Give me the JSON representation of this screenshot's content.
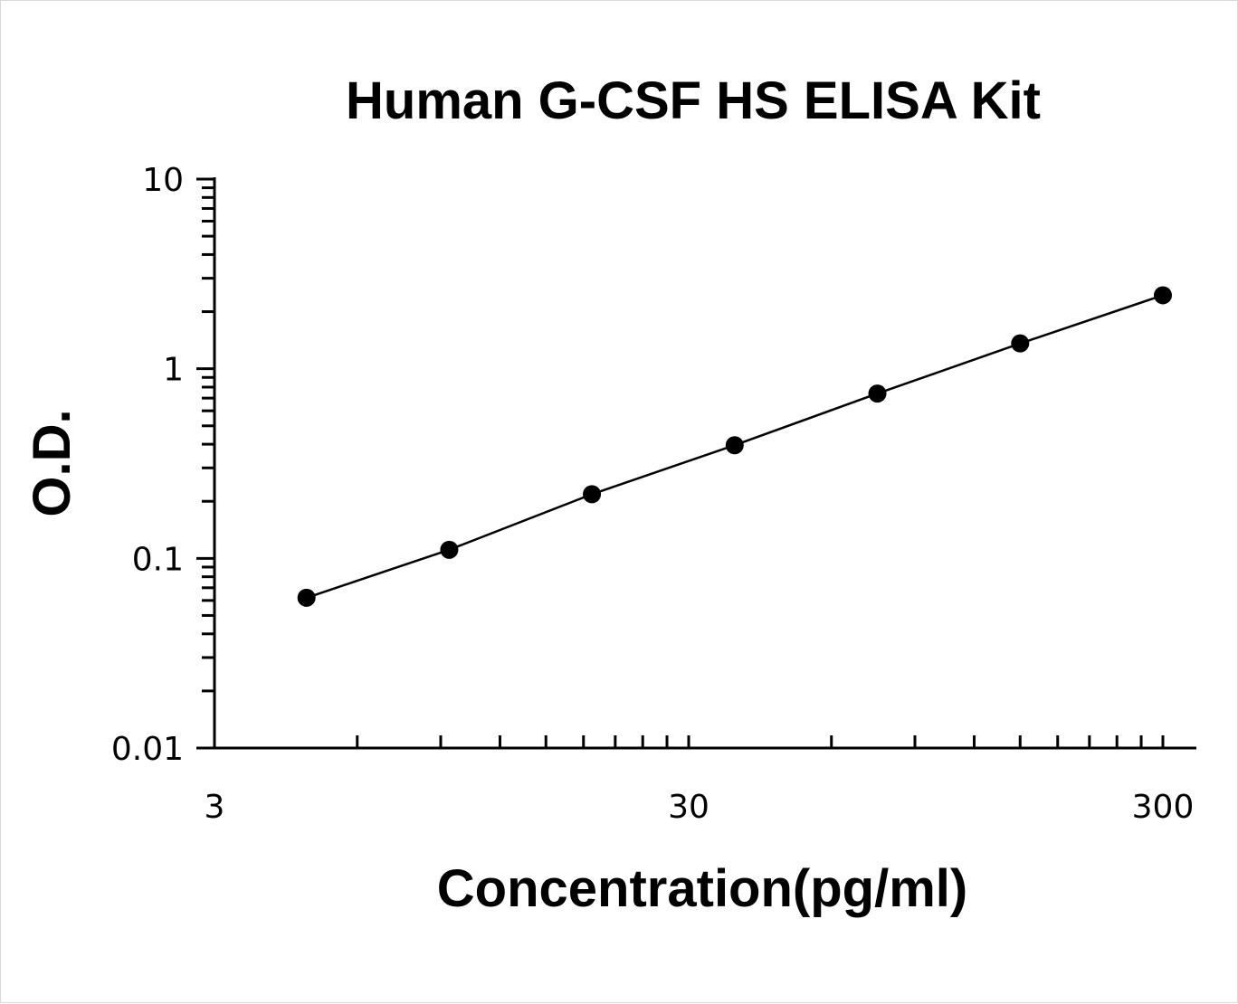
{
  "chart_data": {
    "type": "scatter",
    "title": "Human G-CSF HS ELISA Kit",
    "xlabel": "Concentration(pg/ml)",
    "ylabel": "O.D.",
    "xscale": "log",
    "yscale": "log",
    "xlim": [
      3,
      300
    ],
    "ylim": [
      0.01,
      10
    ],
    "x_ticks": [
      {
        "value": 3,
        "label": "3"
      },
      {
        "value": 30,
        "label": "30"
      },
      {
        "value": 300,
        "label": "300"
      }
    ],
    "y_ticks": [
      {
        "value": 0.01,
        "label": "0.01"
      },
      {
        "value": 0.1,
        "label": "0.1"
      },
      {
        "value": 1,
        "label": "1"
      },
      {
        "value": 10,
        "label": "10"
      }
    ],
    "grid": false,
    "legend": "none",
    "trendline": "line",
    "series": [
      {
        "x": [
          4.69,
          9.38,
          18.75,
          37.5,
          75,
          150,
          300
        ],
        "y": [
          0.062,
          0.111,
          0.218,
          0.395,
          0.74,
          1.36,
          2.44
        ]
      }
    ],
    "colors": {
      "marker": "#000000",
      "line": "#000000",
      "axis": "#000000"
    }
  }
}
